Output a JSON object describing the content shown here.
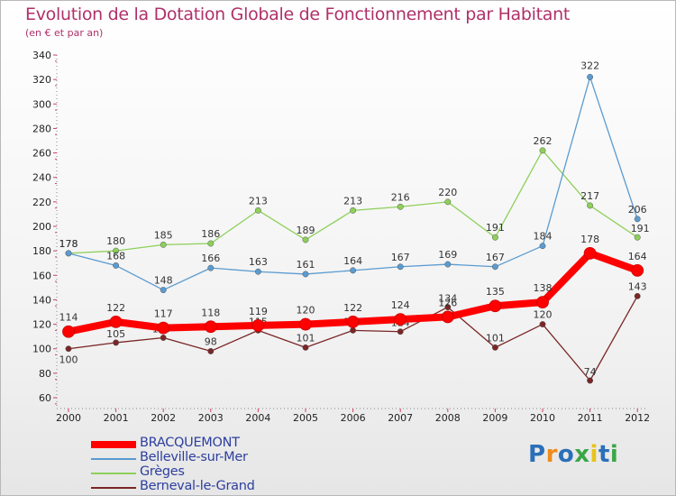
{
  "header": {
    "title": "Evolution de la Dotation Globale de Fonctionnement par Habitant",
    "subtitle": "(en € et par an)"
  },
  "logo": {
    "letters": [
      "P",
      "r",
      "o",
      "x",
      "i",
      "t",
      "i"
    ],
    "colors": [
      "#2b6fb8",
      "#f08a1c",
      "#2b6fb8",
      "#3aa648",
      "#e8c31a",
      "#2b6fb8",
      "#3aa648"
    ]
  },
  "chart_data": {
    "type": "line",
    "title": "Evolution de la Dotation Globale de Fonctionnement par Habitant",
    "subtitle": "(en € et par an)",
    "xlabel": "",
    "ylabel": "",
    "x": [
      "2000",
      "2001",
      "2002",
      "2003",
      "2004",
      "2005",
      "2006",
      "2007",
      "2008",
      "2009",
      "2010",
      "2011",
      "2012"
    ],
    "ylim": [
      60,
      340
    ],
    "yticks": [
      60,
      80,
      100,
      120,
      140,
      160,
      180,
      200,
      220,
      240,
      260,
      280,
      300,
      320,
      340
    ],
    "grid": false,
    "legend": "bottom-left",
    "series": [
      {
        "name": "Berneval-le-Grand",
        "color": "#7a2626",
        "values": [
          100,
          105,
          109,
          98,
          115,
          101,
          115,
          114,
          134,
          101,
          120,
          74,
          143
        ]
      },
      {
        "name": "Grèges",
        "color": "#8ed05a",
        "values": [
          178,
          180,
          185,
          186,
          213,
          189,
          213,
          216,
          220,
          191,
          262,
          217,
          191
        ]
      },
      {
        "name": "Belleville-sur-Mer",
        "color": "#5b9bd0",
        "values": [
          178,
          168,
          148,
          166,
          163,
          161,
          164,
          167,
          169,
          167,
          184,
          322,
          206
        ]
      },
      {
        "name": "BRACQUEMONT",
        "color": "#ff0000",
        "values": [
          114,
          122,
          117,
          118,
          119,
          120,
          122,
          124,
          126,
          135,
          138,
          178,
          164
        ]
      }
    ],
    "legend_order": [
      "BRACQUEMONT",
      "Belleville-sur-Mer",
      "Grèges",
      "Berneval-le-Grand"
    ]
  }
}
